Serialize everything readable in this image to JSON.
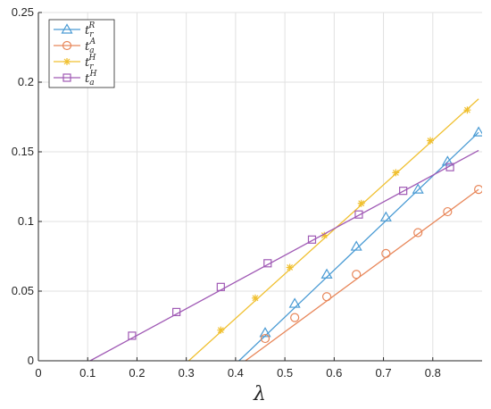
{
  "chart_data": {
    "type": "line",
    "xlabel": "λ",
    "xlim": [
      0,
      0.9
    ],
    "ylim": [
      0,
      0.25
    ],
    "xticks": [
      "0",
      "0.1",
      "0.2",
      "0.3",
      "0.4",
      "0.5",
      "0.6",
      "0.7",
      "0.8"
    ],
    "yticks": [
      "0",
      "0.05",
      "0.1",
      "0.15",
      "0.2",
      "0.25"
    ],
    "xtick_values": [
      0,
      0.1,
      0.2,
      0.3,
      0.4,
      0.5,
      0.6,
      0.7,
      0.8
    ],
    "ytick_values": [
      0,
      0.05,
      0.1,
      0.15,
      0.2,
      0.25
    ],
    "grid": true,
    "legend_position": "top-left",
    "series": [
      {
        "name": "t_r^R",
        "base": "t",
        "sub": "r",
        "sup": "R",
        "color": "#4a9bd4",
        "marker": "triangle",
        "line": [
          [
            0.407,
            0
          ],
          [
            0.893,
            0.164
          ]
        ],
        "markers": [
          [
            0.46,
            0.02
          ],
          [
            0.52,
            0.041
          ],
          [
            0.585,
            0.062
          ],
          [
            0.645,
            0.082
          ],
          [
            0.705,
            0.103
          ],
          [
            0.77,
            0.123
          ],
          [
            0.83,
            0.143
          ],
          [
            0.893,
            0.164
          ]
        ]
      },
      {
        "name": "t_a^A",
        "base": "t",
        "sub": "a",
        "sup": "A",
        "color": "#e8875a",
        "marker": "circle",
        "line": [
          [
            0.42,
            0
          ],
          [
            0.893,
            0.123
          ]
        ],
        "markers": [
          [
            0.46,
            0.016
          ],
          [
            0.52,
            0.031
          ],
          [
            0.585,
            0.046
          ],
          [
            0.645,
            0.062
          ],
          [
            0.705,
            0.077
          ],
          [
            0.77,
            0.092
          ],
          [
            0.83,
            0.107
          ],
          [
            0.893,
            0.123
          ]
        ]
      },
      {
        "name": "t_r^H",
        "base": "t",
        "sub": "r",
        "sup": "H",
        "color": "#f0c030",
        "marker": "star",
        "line": [
          [
            0.305,
            0
          ],
          [
            0.893,
            0.188
          ]
        ],
        "markers": [
          [
            0.37,
            0.022
          ],
          [
            0.44,
            0.045
          ],
          [
            0.51,
            0.067
          ],
          [
            0.58,
            0.09
          ],
          [
            0.655,
            0.113
          ],
          [
            0.725,
            0.135
          ],
          [
            0.795,
            0.158
          ],
          [
            0.87,
            0.18
          ]
        ]
      },
      {
        "name": "t_a^H",
        "base": "t",
        "sub": "a",
        "sup": "H",
        "color": "#a05ab5",
        "marker": "square",
        "line": [
          [
            0.105,
            0
          ],
          [
            0.893,
            0.151
          ]
        ],
        "markers": [
          [
            0.19,
            0.018
          ],
          [
            0.28,
            0.035
          ],
          [
            0.37,
            0.053
          ],
          [
            0.465,
            0.07
          ],
          [
            0.555,
            0.087
          ],
          [
            0.65,
            0.105
          ],
          [
            0.74,
            0.122
          ],
          [
            0.835,
            0.139
          ]
        ]
      }
    ]
  }
}
